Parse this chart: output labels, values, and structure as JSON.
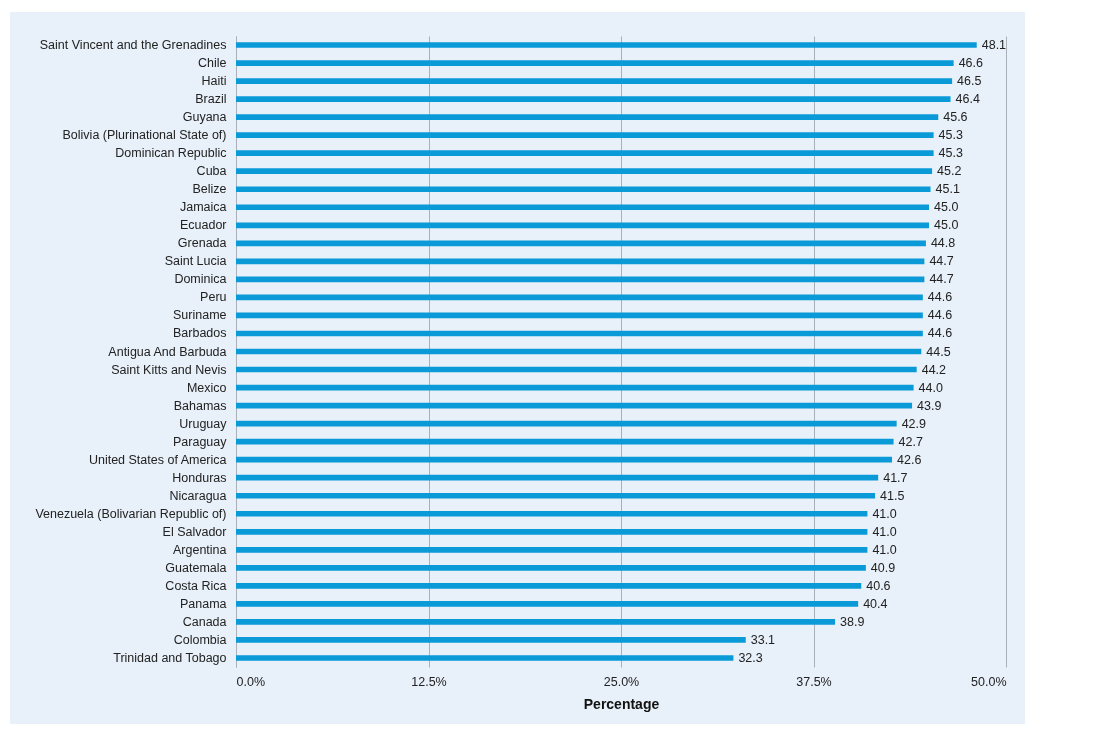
{
  "chart_data": {
    "type": "bar",
    "orientation": "horizontal",
    "xlabel": "Percentage",
    "categories": [
      "Saint Vincent and the Grenadines",
      "Chile",
      "Haiti",
      "Brazil",
      "Guyana",
      "Bolivia (Plurinational State of)",
      "Dominican Republic",
      "Cuba",
      "Belize",
      "Jamaica",
      "Ecuador",
      "Grenada",
      "Saint Lucia",
      "Dominica",
      "Peru",
      "Suriname",
      "Barbados",
      "Antigua And Barbuda",
      "Saint Kitts and Nevis",
      "Mexico",
      "Bahamas",
      "Uruguay",
      "Paraguay",
      "United States of America",
      "Honduras",
      "Nicaragua",
      "Venezuela (Bolivarian Republic of)",
      "El Salvador",
      "Argentina",
      "Guatemala",
      "Costa Rica",
      "Panama",
      "Canada",
      "Colombia",
      "Trinidad and Tobago"
    ],
    "values": [
      48.1,
      46.6,
      46.5,
      46.4,
      45.6,
      45.3,
      45.3,
      45.2,
      45.1,
      45.0,
      45.0,
      44.8,
      44.7,
      44.7,
      44.6,
      44.6,
      44.6,
      44.5,
      44.2,
      44.0,
      43.9,
      42.9,
      42.7,
      42.6,
      41.7,
      41.5,
      41.0,
      41.0,
      41.0,
      40.9,
      40.6,
      40.4,
      38.9,
      33.1,
      32.3
    ],
    "color": "#0b9ad8",
    "xlim": [
      0,
      50
    ],
    "xticks": [
      {
        "value": 0,
        "label": "0.0%"
      },
      {
        "value": 12.5,
        "label": "12.5%"
      },
      {
        "value": 25,
        "label": "25.0%"
      },
      {
        "value": 37.5,
        "label": "37.5%"
      },
      {
        "value": 50,
        "label": "50.0%"
      }
    ],
    "grid": "x",
    "value_labels": [
      "48.1",
      "46.6",
      "46.5",
      "46.4",
      "45.6",
      "45.3",
      "45.3",
      "45.2",
      "45.1",
      "45.0",
      "45.0",
      "44.8",
      "44.7",
      "44.7",
      "44.6",
      "44.6",
      "44.6",
      "44.5",
      "44.2",
      "44.0",
      "43.9",
      "42.9",
      "42.7",
      "42.6",
      "41.7",
      "41.5",
      "41.0",
      "41.0",
      "41.0",
      "40.9",
      "40.6",
      "40.4",
      "38.9",
      "33.1",
      "32.3"
    ]
  }
}
